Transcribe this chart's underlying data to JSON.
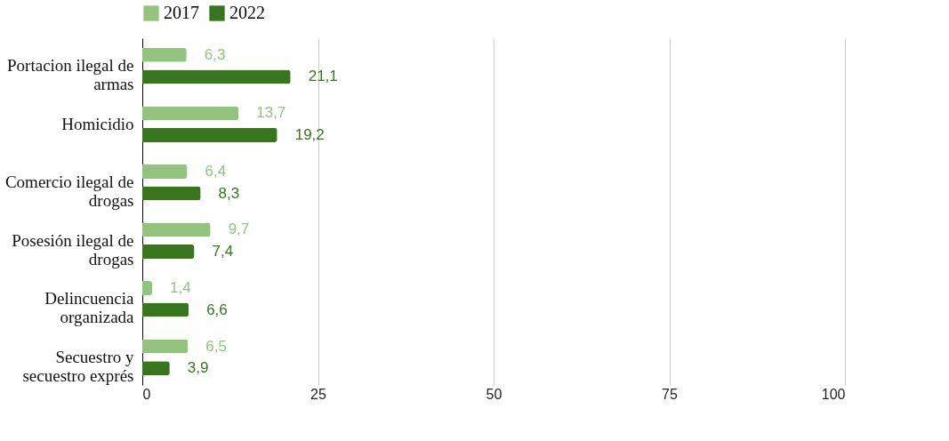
{
  "chart_data": {
    "type": "bar",
    "orientation": "horizontal",
    "categories": [
      "Portacion ilegal de armas",
      "Homicidio",
      "Comercio ilegal de drogas",
      "Posesión ilegal de drogas",
      "Delincuencia organizada",
      "Secuestro y secuestro exprés"
    ],
    "series": [
      {
        "name": "2017",
        "color": "#93c47d",
        "values": [
          6.3,
          13.7,
          6.4,
          9.7,
          1.4,
          6.5
        ],
        "value_labels": [
          "6,3",
          "13,7",
          "6,4",
          "9,7",
          "1,4",
          "6,5"
        ]
      },
      {
        "name": "2022",
        "color": "#38761d",
        "values": [
          21.1,
          19.2,
          8.3,
          7.4,
          6.6,
          3.9
        ],
        "value_labels": [
          "21,1",
          "19,2",
          "8,3",
          "7,4",
          "6,6",
          "3,9"
        ]
      }
    ],
    "xlim": [
      0,
      100
    ],
    "xticks": [
      0,
      25,
      50,
      75,
      100
    ],
    "grid": "x",
    "legend": "top"
  }
}
